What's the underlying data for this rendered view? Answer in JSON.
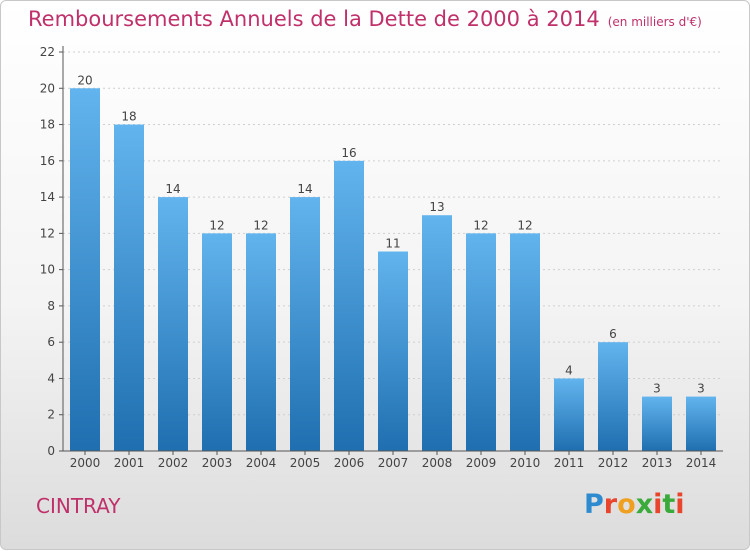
{
  "title": "Remboursements Annuels de la Dette de 2000 à 2014",
  "subtitle": "(en milliers d'€)",
  "commune": "CINTRAY",
  "logo": {
    "text": "Proxiti",
    "colors": [
      "#2e8bd0",
      "#e8452c",
      "#f0a020",
      "#3aaa3a",
      "#e8452c",
      "#3aaa3a",
      "#e8452c"
    ]
  },
  "colors": {
    "title": "#c0306a",
    "bar_top": "#62b4ee",
    "bar_bottom": "#1f6fb0",
    "grid": "#cfcfcf",
    "axis": "#555555"
  },
  "chart_data": {
    "type": "bar",
    "categories": [
      "2000",
      "2001",
      "2002",
      "2003",
      "2004",
      "2005",
      "2006",
      "2007",
      "2008",
      "2009",
      "2010",
      "2011",
      "2012",
      "2013",
      "2014"
    ],
    "values": [
      20,
      18,
      14,
      12,
      12,
      14,
      16,
      11,
      13,
      12,
      12,
      4,
      6,
      3,
      3
    ],
    "yticks": [
      0,
      2,
      4,
      6,
      8,
      10,
      12,
      14,
      16,
      18,
      20,
      22
    ],
    "ylim": [
      0,
      22
    ],
    "grid": true,
    "xlabel": "",
    "ylabel": ""
  }
}
